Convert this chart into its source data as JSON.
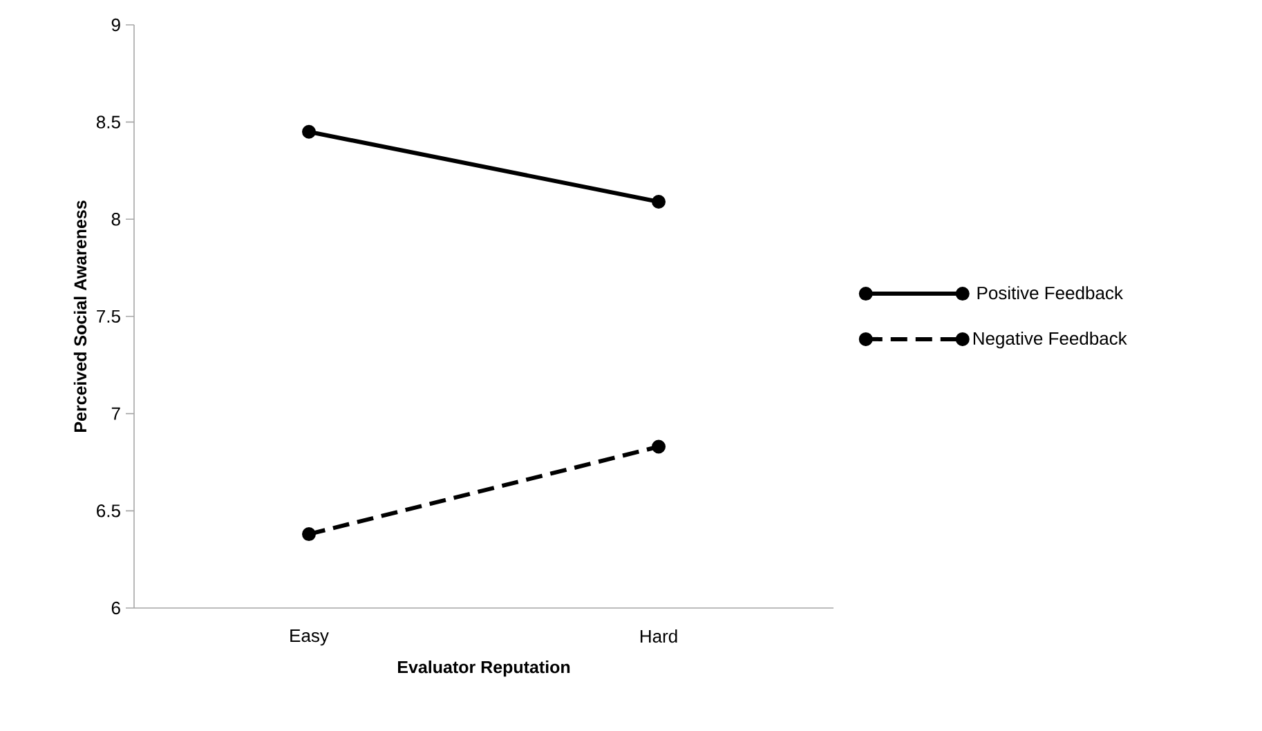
{
  "chart_data": {
    "type": "line",
    "xlabel": "Evaluator Reputation",
    "ylabel": "Perceived Social Awareness",
    "categories": [
      "Easy",
      "Hard"
    ],
    "ylim": [
      6,
      9
    ],
    "yticks": [
      6,
      6.5,
      7,
      7.5,
      8,
      8.5,
      9
    ],
    "grid": false,
    "legend": "right",
    "marker": "circle",
    "series": [
      {
        "name": "Positive Feedback",
        "color": "#000000",
        "line_style": "solid",
        "values": [
          8.45,
          8.09
        ]
      },
      {
        "name": "Negative Feedback",
        "color": "#000000",
        "line_style": "dashed",
        "values": [
          6.38,
          6.83
        ]
      }
    ]
  }
}
